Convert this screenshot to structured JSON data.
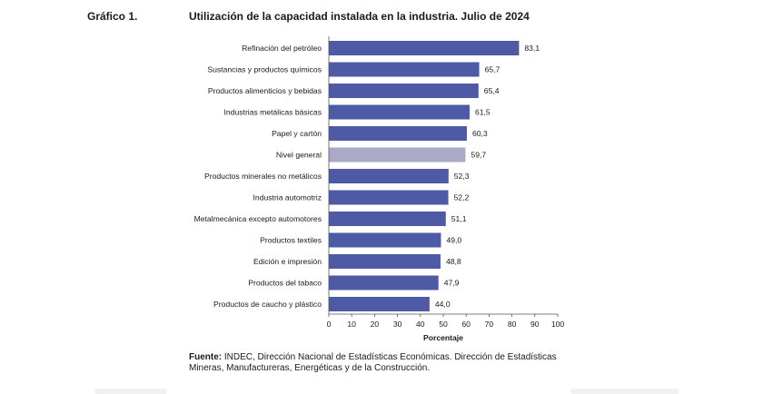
{
  "header": {
    "figure_label": "Gráfico 1.",
    "title": "Utilización de la capacidad instalada en la industria. Julio de 2024"
  },
  "source": {
    "label": "Fuente:",
    "text": " INDEC, Dirección Nacional de Estadísticas Económicas. Dirección de Estadísticas Mineras, Manufactureras, Energéticas y de la Construcción."
  },
  "colors": {
    "bar": "#4f5aa6",
    "highlight": "#a9abc6",
    "grid": "#d9d9d9",
    "axis": "#555555"
  },
  "chart_data": {
    "type": "bar",
    "orientation": "horizontal",
    "title": "Utilización de la capacidad instalada en la industria. Julio de 2024",
    "xlabel": "Porcentaje",
    "ylabel": "",
    "xlim": [
      0,
      100
    ],
    "xticks": [
      0,
      10,
      20,
      30,
      40,
      50,
      60,
      70,
      80,
      90,
      100
    ],
    "grid": false,
    "highlight_category": "Nivel general",
    "categories": [
      "Refinación del petróleo",
      "Sustancias y productos químicos",
      "Productos alimenticios y bebidas",
      "Industrias metálicas básicas",
      "Papel y cartón",
      "Nivel general",
      "Productos minerales no metálicos",
      "Industria automotriz",
      "Metalmecánica excepto automotores",
      "Productos textiles",
      "Edición e impresión",
      "Productos del tabaco",
      "Productos de caucho y plástico"
    ],
    "values": [
      83.1,
      65.7,
      65.4,
      61.5,
      60.3,
      59.7,
      52.3,
      52.2,
      51.1,
      49.0,
      48.8,
      47.9,
      44.0
    ],
    "value_labels": [
      "83,1",
      "65,7",
      "65,4",
      "61,5",
      "60,3",
      "59,7",
      "52,3",
      "52,2",
      "51,1",
      "49,0",
      "48,8",
      "47,9",
      "44,0"
    ]
  }
}
